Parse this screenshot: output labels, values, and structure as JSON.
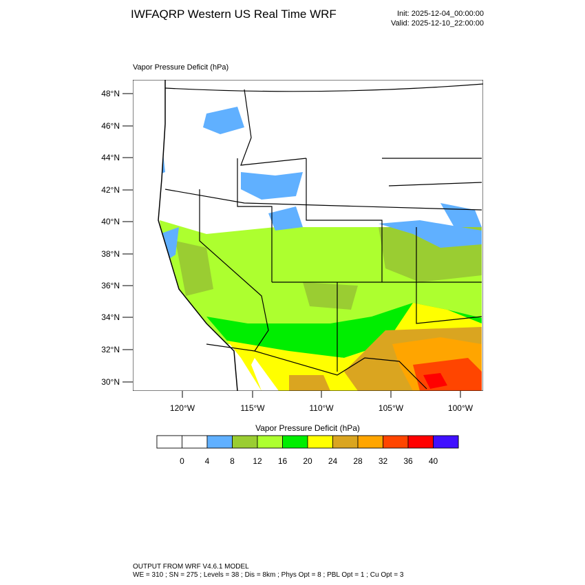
{
  "header": {
    "title": "IWFAQRP Western US Real Time WRF",
    "init": "Init: 2025-12-04_00:00:00",
    "valid": "Valid: 2025-12-10_22:00:00"
  },
  "map": {
    "field_label": "Vapor Pressure Deficit   (hPa)",
    "lat_ticks": [
      "48°N",
      "46°N",
      "44°N",
      "42°N",
      "40°N",
      "38°N",
      "36°N",
      "34°N",
      "32°N",
      "30°N"
    ],
    "lon_ticks": [
      "120°W",
      "115°W",
      "110°W",
      "105°W",
      "100°W"
    ]
  },
  "colorbar": {
    "title": "Vapor Pressure Deficit  (hPa)",
    "levels": [
      0,
      4,
      8,
      12,
      16,
      20,
      24,
      28,
      32,
      36,
      40
    ],
    "colors": [
      "#ffffff",
      "#ffffff",
      "#60b0ff",
      "#9acd32",
      "#adff2f",
      "#00ee00",
      "#ffff00",
      "#daa520",
      "#ffa500",
      "#ff4500",
      "#ff0000",
      "#4010ff"
    ]
  },
  "footer": {
    "line1": "OUTPUT FROM WRF V4.6.1 MODEL",
    "line2": "WE = 310 ; SN = 275 ; Levels = 38 ; Dis = 8km ; Phys Opt = 8 ; PBL Opt = 1 ; Cu Opt = 3"
  }
}
